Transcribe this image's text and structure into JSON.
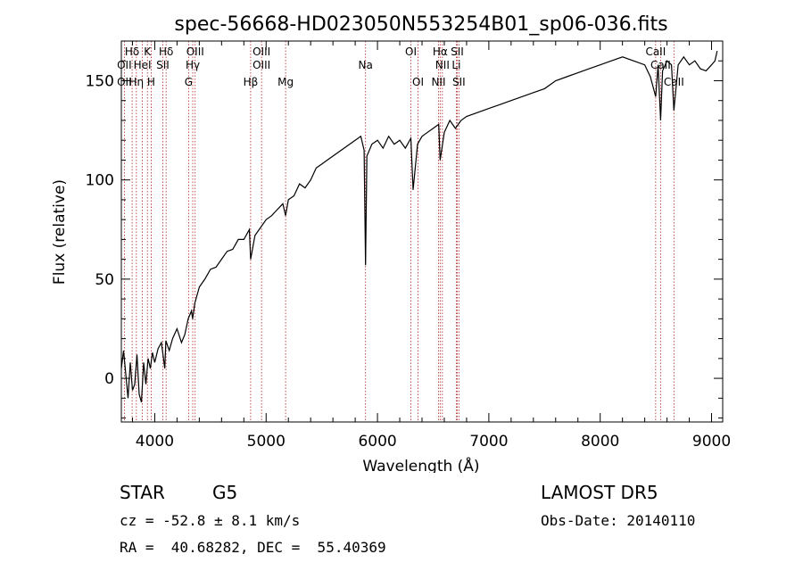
{
  "chart_data": {
    "type": "line",
    "title": "spec-56668-HD023050N553254B01_sp06-036.fits",
    "xlabel": "Wavelength (Å)",
    "ylabel": "Flux (relative)",
    "xlim": [
      3700,
      9100
    ],
    "ylim": [
      -22,
      170
    ],
    "xticks": [
      4000,
      5000,
      6000,
      7000,
      8000,
      9000
    ],
    "yticks": [
      0,
      50,
      100,
      150
    ],
    "grid": false,
    "line_color": "#000000",
    "marker_line_color": "#b22222",
    "series": [
      {
        "x": [
          3700,
          3720,
          3740,
          3760,
          3780,
          3800,
          3820,
          3840,
          3860,
          3880,
          3900,
          3920,
          3940,
          3960,
          3980,
          4000,
          4030,
          4060,
          4090,
          4100,
          4130,
          4160,
          4200,
          4240,
          4270,
          4300,
          4330,
          4340,
          4360,
          4400,
          4450,
          4500,
          4550,
          4600,
          4650,
          4700,
          4750,
          4800,
          4850,
          4861,
          4900,
          4950,
          5000,
          5050,
          5100,
          5150,
          5175,
          5200,
          5250,
          5300,
          5350,
          5400,
          5450,
          5500,
          5550,
          5600,
          5650,
          5700,
          5750,
          5800,
          5850,
          5880,
          5893,
          5905,
          5950,
          6000,
          6050,
          6100,
          6150,
          6200,
          6250,
          6300,
          6320,
          6360,
          6400,
          6450,
          6500,
          6550,
          6563,
          6600,
          6650,
          6700,
          6750,
          6800,
          6900,
          7000,
          7100,
          7200,
          7300,
          7400,
          7500,
          7600,
          7700,
          7800,
          7900,
          8000,
          8100,
          8200,
          8300,
          8400,
          8450,
          8498,
          8520,
          8542,
          8560,
          8600,
          8640,
          8662,
          8700,
          8750,
          8800,
          8850,
          8900,
          8950,
          9000,
          9030,
          9050
        ],
        "values": [
          5,
          14,
          2,
          -10,
          8,
          -6,
          -3,
          12,
          -8,
          -12,
          8,
          -3,
          10,
          5,
          13,
          8,
          15,
          18,
          5,
          19,
          14,
          20,
          25,
          18,
          22,
          30,
          34,
          30,
          38,
          46,
          50,
          55,
          56,
          60,
          64,
          65,
          70,
          70,
          75,
          60,
          72,
          76,
          80,
          82,
          85,
          88,
          82,
          90,
          92,
          98,
          96,
          100,
          106,
          108,
          110,
          112,
          114,
          116,
          118,
          120,
          122,
          115,
          57,
          112,
          118,
          120,
          116,
          122,
          118,
          120,
          116,
          121,
          95,
          118,
          122,
          124,
          126,
          128,
          110,
          124,
          130,
          126,
          130,
          132,
          134,
          136,
          138,
          140,
          142,
          144,
          146,
          150,
          152,
          154,
          156,
          158,
          160,
          162,
          160,
          158,
          152,
          142,
          158,
          130,
          155,
          160,
          158,
          135,
          158,
          162,
          158,
          160,
          156,
          155,
          158,
          160,
          165
        ]
      }
    ],
    "lines": [
      {
        "label": "Hδ",
        "x": 3797,
        "row": 1
      },
      {
        "label": "OII",
        "x": 3727,
        "row": 2
      },
      {
        "label": "OII",
        "x": 3727,
        "row": 3
      },
      {
        "label": "HeI",
        "x": 3889,
        "row": 2
      },
      {
        "label": "Hη",
        "x": 3835,
        "row": 3
      },
      {
        "label": "K",
        "x": 3934,
        "row": 1
      },
      {
        "label": "H",
        "x": 3968,
        "row": 3
      },
      {
        "label": "Hδ",
        "x": 4102,
        "row": 1
      },
      {
        "label": "SII",
        "x": 4072,
        "row": 2
      },
      {
        "label": "OIII",
        "x": 4363,
        "row": 1
      },
      {
        "label": "Hγ",
        "x": 4341,
        "row": 2
      },
      {
        "label": "G",
        "x": 4304,
        "row": 3
      },
      {
        "label": "OIII",
        "x": 4959,
        "row": 1
      },
      {
        "label": "OIII",
        "x": 4959,
        "row": 2
      },
      {
        "label": "Hβ",
        "x": 4861,
        "row": 3
      },
      {
        "label": "Mg",
        "x": 5175,
        "row": 3
      },
      {
        "label": "Na",
        "x": 5893,
        "row": 2
      },
      {
        "label": "OI",
        "x": 6300,
        "row": 1
      },
      {
        "label": "OI",
        "x": 6364,
        "row": 3
      },
      {
        "label": "Hα",
        "x": 6563,
        "row": 1
      },
      {
        "label": "SII",
        "x": 6716,
        "row": 1
      },
      {
        "label": "NII",
        "x": 6583,
        "row": 2
      },
      {
        "label": "Li",
        "x": 6708,
        "row": 2
      },
      {
        "label": "NII",
        "x": 6548,
        "row": 3
      },
      {
        "label": "SII",
        "x": 6731,
        "row": 3
      },
      {
        "label": "CaII",
        "x": 8498,
        "row": 1
      },
      {
        "label": "CaII",
        "x": 8542,
        "row": 2
      },
      {
        "label": "CaII",
        "x": 8662,
        "row": 3
      }
    ]
  },
  "info": {
    "object_class": "STAR",
    "subclass": "G5",
    "survey": "LAMOST DR5",
    "redshift": "cz = -52.8 ± 8.1 km/s",
    "obs_date": "Obs-Date: 20140110",
    "coords": "RA =  40.68282, DEC =  55.40369"
  }
}
